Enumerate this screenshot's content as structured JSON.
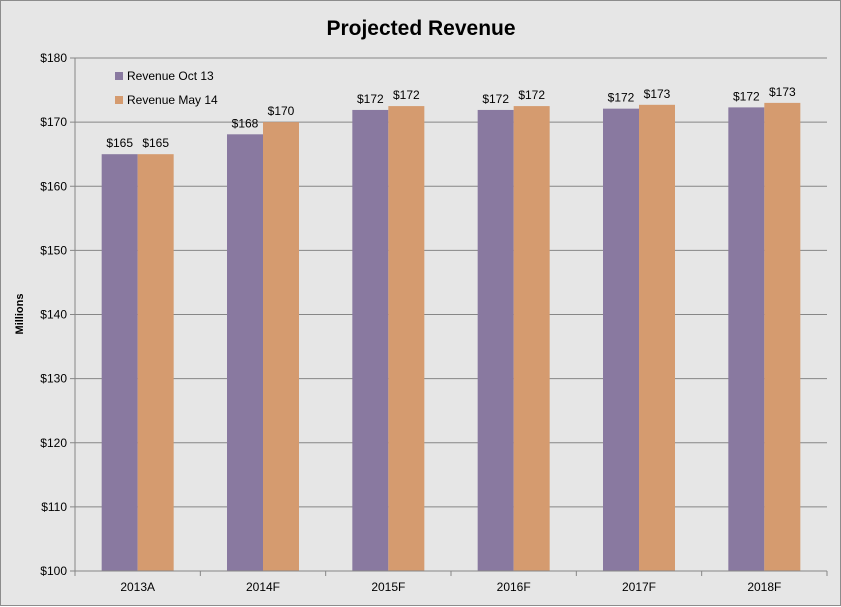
{
  "chart_data": {
    "type": "bar",
    "title": "Projected Revenue",
    "xlabel": "",
    "ylabel": "Millions",
    "ylim": [
      100,
      180
    ],
    "ytick_step": 10,
    "ytick_prefix": "$",
    "categories": [
      "2013A",
      "2014F",
      "2015F",
      "2016F",
      "2017F",
      "2018F"
    ],
    "series": [
      {
        "name": "Revenue Oct 13",
        "color": "#8979a0",
        "values": [
          165,
          168.1,
          171.9,
          171.9,
          172.1,
          172.3
        ],
        "labels": [
          "$165",
          "$168",
          "$172",
          "$172",
          "$172",
          "$172"
        ]
      },
      {
        "name": "Revenue May 14",
        "color": "#d59b6f",
        "values": [
          165,
          170,
          172.5,
          172.5,
          172.7,
          173
        ],
        "labels": [
          "$165",
          "$170",
          "$172",
          "$172",
          "$173",
          "$173"
        ]
      }
    ],
    "grid": true,
    "legend": "top-left",
    "background": "#e6e6e6"
  }
}
